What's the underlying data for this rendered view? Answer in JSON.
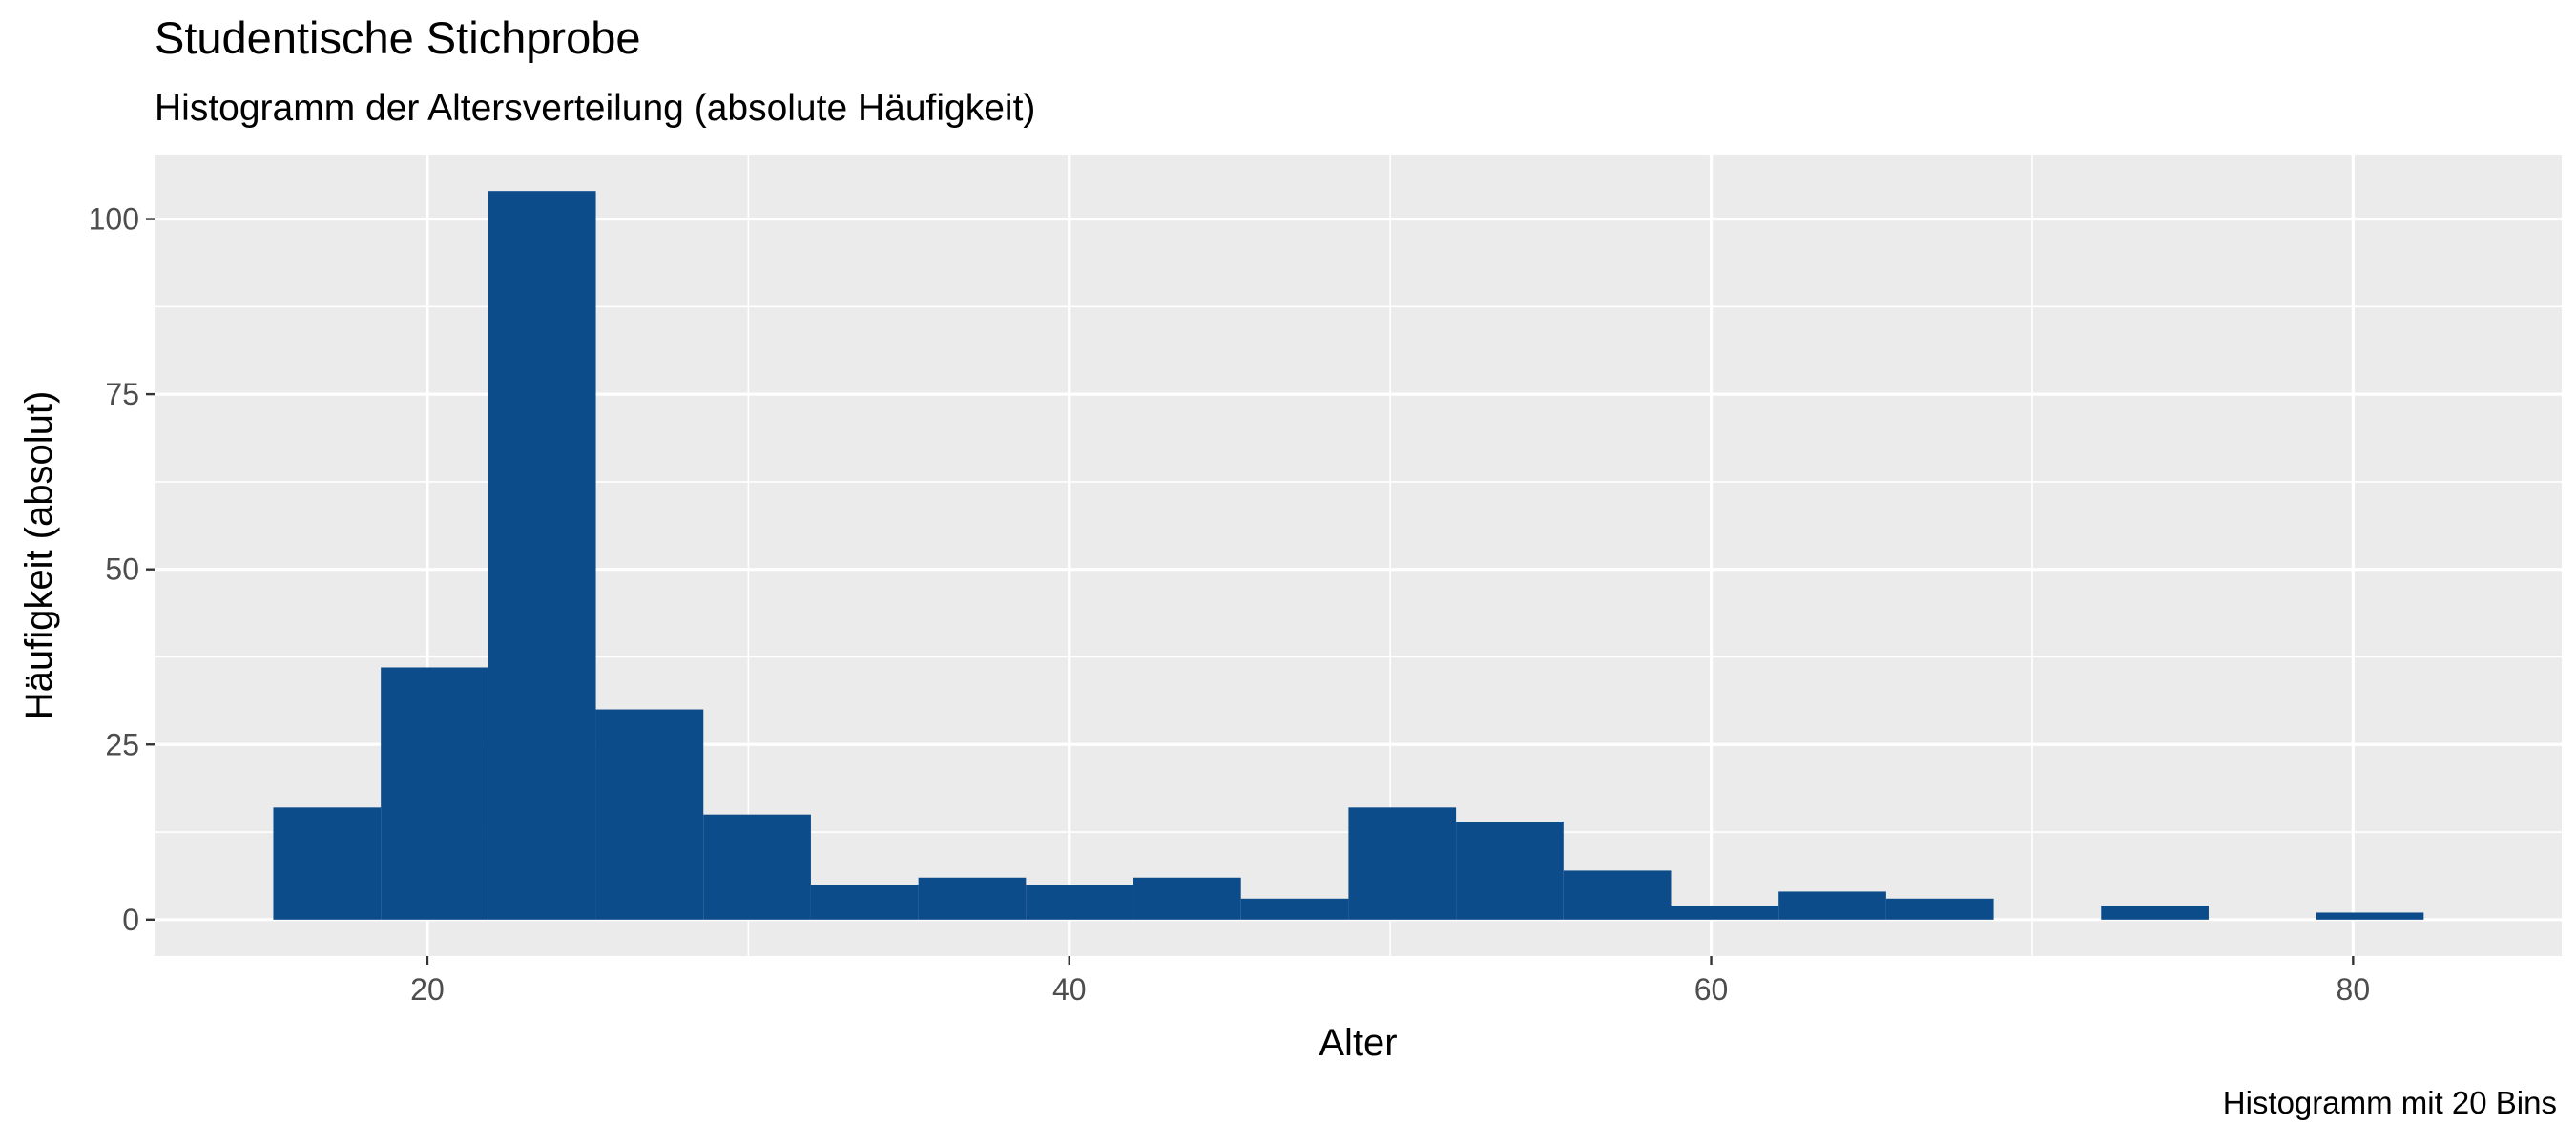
{
  "chart_data": {
    "type": "bar",
    "title": "Studentische Stichprobe",
    "subtitle": "Histogramm der Altersverteilung (absolute Häufigkeit)",
    "caption": "Histogramm mit 20 Bins",
    "xlabel": "Alter",
    "ylabel": "Häufigkeit (absolut)",
    "xlim": [
      11.5,
      86.5
    ],
    "ylim": [
      -5.2,
      109.2
    ],
    "x_ticks": [
      20,
      40,
      60,
      80
    ],
    "y_ticks": [
      0,
      25,
      50,
      75,
      100
    ],
    "grid": true,
    "bar_color": "#0D4C8A",
    "panel_background": "#EBEBEB",
    "grid_color": "#FFFFFF",
    "bins": [
      {
        "x_start": 15.2,
        "x_end": 18.55,
        "count": 16
      },
      {
        "x_start": 18.55,
        "x_end": 21.9,
        "count": 36
      },
      {
        "x_start": 21.9,
        "x_end": 25.25,
        "count": 104
      },
      {
        "x_start": 25.25,
        "x_end": 28.6,
        "count": 30
      },
      {
        "x_start": 28.6,
        "x_end": 31.95,
        "count": 15
      },
      {
        "x_start": 31.95,
        "x_end": 35.3,
        "count": 5
      },
      {
        "x_start": 35.3,
        "x_end": 38.65,
        "count": 6
      },
      {
        "x_start": 38.65,
        "x_end": 42.0,
        "count": 5
      },
      {
        "x_start": 42.0,
        "x_end": 45.35,
        "count": 6
      },
      {
        "x_start": 45.35,
        "x_end": 48.7,
        "count": 3
      },
      {
        "x_start": 48.7,
        "x_end": 52.05,
        "count": 16
      },
      {
        "x_start": 52.05,
        "x_end": 55.4,
        "count": 14
      },
      {
        "x_start": 55.4,
        "x_end": 58.75,
        "count": 7
      },
      {
        "x_start": 58.75,
        "x_end": 62.1,
        "count": 2
      },
      {
        "x_start": 62.1,
        "x_end": 65.45,
        "count": 4
      },
      {
        "x_start": 65.45,
        "x_end": 68.8,
        "count": 3
      },
      {
        "x_start": 68.8,
        "x_end": 72.15,
        "count": 0
      },
      {
        "x_start": 72.15,
        "x_end": 75.5,
        "count": 2
      },
      {
        "x_start": 75.5,
        "x_end": 78.85,
        "count": 0
      },
      {
        "x_start": 78.85,
        "x_end": 82.2,
        "count": 1
      }
    ]
  }
}
